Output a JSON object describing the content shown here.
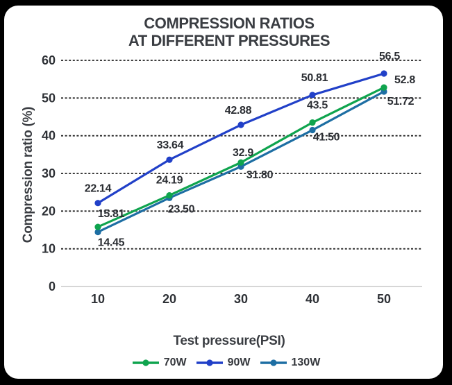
{
  "window": {
    "background": "#000000",
    "card_background": "#ffffff"
  },
  "chart_data": {
    "type": "line",
    "title_lines": [
      "COMPRESSION RATIOS",
      "AT DIFFERENT PRESSURES"
    ],
    "xlabel": "Test pressure(PSI)",
    "ylabel": "Compression ratio (%)",
    "x": [
      10,
      20,
      30,
      40,
      50
    ],
    "xticks": [
      "10",
      "20",
      "30",
      "40",
      "50"
    ],
    "yticks": [
      0,
      10,
      20,
      30,
      40,
      50,
      60
    ],
    "ylim": [
      0,
      60
    ],
    "grid": "horizontal-dashed",
    "legend_position": "bottom",
    "series": [
      {
        "name": "70W",
        "color": "#0FA44E",
        "values": [
          15.81,
          24.19,
          32.9,
          43.5,
          52.8
        ],
        "labels": [
          "15.81",
          "24.19",
          "32.9",
          "43.5",
          "52.8"
        ],
        "label_dx": [
          19,
          0,
          3,
          7,
          30
        ],
        "label_dy": [
          -19,
          -22,
          -14,
          -25,
          -11
        ]
      },
      {
        "name": "90W",
        "color": "#2140C8",
        "values": [
          22.14,
          33.64,
          42.88,
          50.81,
          56.5
        ],
        "labels": [
          "22.14",
          "33.64",
          "42.88",
          "50.81",
          "56.5"
        ],
        "label_dx": [
          0,
          1,
          -4,
          3,
          8
        ],
        "label_dy": [
          -21,
          -21,
          -21,
          -25,
          -25
        ]
      },
      {
        "name": "130W",
        "color": "#1D6EA3",
        "values": [
          14.45,
          23.5,
          31.8,
          41.5,
          51.72
        ],
        "labels": [
          "14.45",
          "23.50",
          "31.80",
          "41.50",
          "51.72"
        ],
        "label_dx": [
          19,
          17,
          27,
          20,
          24
        ],
        "label_dy": [
          15,
          16,
          12,
          10,
          14
        ]
      }
    ],
    "colors": {
      "grid": "#222222",
      "baseline": "#c8c8c8",
      "title_text": "#3a3d42",
      "tick_text": "#2e3136",
      "data_label_text": "#2b2e33"
    }
  }
}
